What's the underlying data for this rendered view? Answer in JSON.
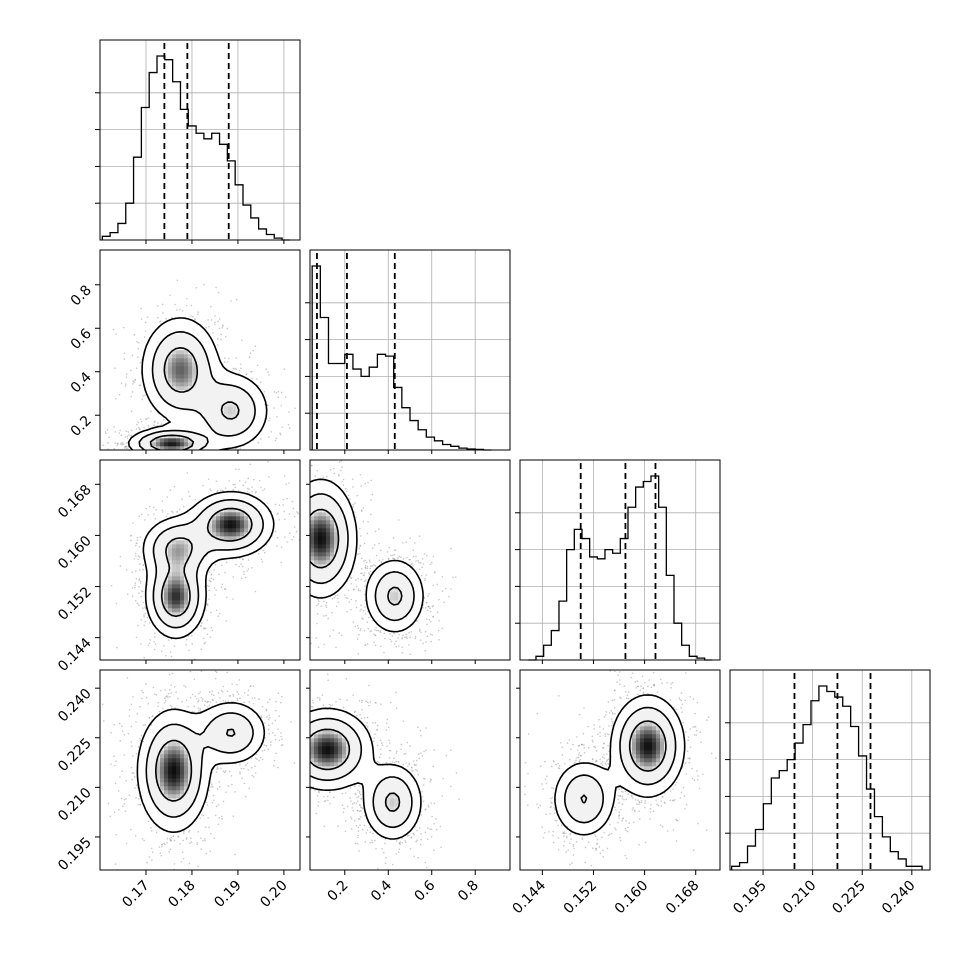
{
  "chart_data": {
    "type": "corner",
    "title": "",
    "parameters": [
      {
        "name": "param_0",
        "axis_label": "",
        "range": [
          0.16,
          0.2035
        ],
        "ticks": [
          0.17,
          0.18,
          0.19,
          0.2
        ],
        "tick_labels": [
          "0.17",
          "0.18",
          "0.19",
          "0.20"
        ],
        "quantiles": [
          0.174,
          0.179,
          0.188
        ]
      },
      {
        "name": "param_1",
        "axis_label": "",
        "range": [
          0.04,
          0.96
        ],
        "ticks": [
          0.2,
          0.4,
          0.6,
          0.8
        ],
        "tick_labels": [
          "0.2",
          "0.4",
          "0.6",
          "0.8"
        ],
        "quantiles": [
          0.072,
          0.21,
          0.43
        ]
      },
      {
        "name": "param_2",
        "axis_label": "",
        "range": [
          0.1405,
          0.1718
        ],
        "ticks": [
          0.144,
          0.152,
          0.16,
          0.168
        ],
        "tick_labels": [
          "0.144",
          "0.152",
          "0.160",
          "0.168"
        ],
        "quantiles": [
          0.15,
          0.157,
          0.1617
        ]
      },
      {
        "name": "param_3",
        "axis_label": "",
        "range": [
          0.185,
          0.2455
        ],
        "ticks": [
          0.195,
          0.21,
          0.225,
          0.24
        ],
        "tick_labels": [
          "0.195",
          "0.210",
          "0.225",
          "0.240"
        ],
        "quantiles": [
          0.2045,
          0.2175,
          0.2275
        ]
      }
    ],
    "histograms": [
      {
        "param": 0,
        "bins": [
          0.1605,
          0.1622,
          0.1639,
          0.1656,
          0.1673,
          0.169,
          0.1707,
          0.1724,
          0.1741,
          0.1758,
          0.1775,
          0.1792,
          0.1809,
          0.1826,
          0.1843,
          0.186,
          0.1877,
          0.1894,
          0.1911,
          0.1928,
          0.1945,
          0.1962,
          0.1979,
          0.1996,
          0.2013
        ],
        "counts": [
          0.02,
          0.04,
          0.09,
          0.2,
          0.45,
          0.72,
          0.91,
          1.0,
          0.98,
          0.86,
          0.71,
          0.62,
          0.58,
          0.55,
          0.58,
          0.52,
          0.43,
          0.3,
          0.19,
          0.12,
          0.06,
          0.03,
          0.01,
          0.0
        ]
      },
      {
        "param": 1,
        "bins": [
          0.05,
          0.0875,
          0.125,
          0.1625,
          0.2,
          0.2375,
          0.275,
          0.3125,
          0.35,
          0.3875,
          0.425,
          0.4625,
          0.5,
          0.5375,
          0.575,
          0.6125,
          0.65,
          0.6875,
          0.725,
          0.7625,
          0.8,
          0.8375,
          0.875
        ],
        "counts": [
          1.0,
          0.72,
          0.47,
          0.47,
          0.52,
          0.44,
          0.4,
          0.45,
          0.52,
          0.51,
          0.34,
          0.23,
          0.16,
          0.11,
          0.07,
          0.05,
          0.03,
          0.02,
          0.01,
          0.005,
          0.003,
          0.0
        ]
      },
      {
        "param": 2,
        "bins": [
          0.1418,
          0.143,
          0.1442,
          0.1454,
          0.1466,
          0.1478,
          0.149,
          0.1502,
          0.1514,
          0.1526,
          0.1538,
          0.155,
          0.1562,
          0.1574,
          0.1586,
          0.1598,
          0.161,
          0.1622,
          0.1634,
          0.1646,
          0.1658,
          0.167,
          0.1682,
          0.1694,
          0.1706
        ],
        "counts": [
          0.0,
          0.02,
          0.08,
          0.16,
          0.32,
          0.6,
          0.71,
          0.66,
          0.56,
          0.55,
          0.6,
          0.58,
          0.66,
          0.83,
          0.94,
          0.97,
          1.0,
          0.83,
          0.46,
          0.2,
          0.08,
          0.02,
          0.01,
          0.0
        ]
      },
      {
        "param": 3,
        "bins": [
          0.1855,
          0.1879,
          0.1903,
          0.1927,
          0.1951,
          0.1975,
          0.1999,
          0.2023,
          0.2047,
          0.2071,
          0.2095,
          0.2119,
          0.2143,
          0.2167,
          0.2191,
          0.2215,
          0.2239,
          0.2263,
          0.2287,
          0.2311,
          0.2335,
          0.2359,
          0.2383,
          0.2407,
          0.2431
        ],
        "counts": [
          0.02,
          0.04,
          0.13,
          0.22,
          0.36,
          0.5,
          0.54,
          0.6,
          0.69,
          0.79,
          0.92,
          1.0,
          0.97,
          0.94,
          0.89,
          0.78,
          0.62,
          0.44,
          0.29,
          0.18,
          0.1,
          0.06,
          0.02,
          0.02
        ]
      }
    ],
    "pairs": [
      {
        "x": 0,
        "y": 1,
        "modes": [
          {
            "cx": 0.1775,
            "cy": 0.41,
            "sx": 0.0042,
            "sy": 0.12,
            "w": 0.34
          },
          {
            "cx": 0.1885,
            "cy": 0.22,
            "sx": 0.0042,
            "sy": 0.09,
            "w": 0.26
          },
          {
            "cx": 0.1755,
            "cy": 0.07,
            "sx": 0.0045,
            "sy": 0.035,
            "w": 0.4
          }
        ]
      },
      {
        "x": 0,
        "y": 2,
        "modes": [
          {
            "cx": 0.1765,
            "cy": 0.1504,
            "sx": 0.0032,
            "sy": 0.0032,
            "w": 0.36
          },
          {
            "cx": 0.177,
            "cy": 0.158,
            "sx": 0.004,
            "sy": 0.0025,
            "w": 0.26
          },
          {
            "cx": 0.1885,
            "cy": 0.1617,
            "sx": 0.0045,
            "sy": 0.0025,
            "w": 0.38
          }
        ]
      },
      {
        "x": 0,
        "y": 3,
        "modes": [
          {
            "cx": 0.176,
            "cy": 0.215,
            "sx": 0.0038,
            "sy": 0.009,
            "w": 0.62
          },
          {
            "cx": 0.1885,
            "cy": 0.2265,
            "sx": 0.004,
            "sy": 0.005,
            "w": 0.38
          }
        ]
      },
      {
        "x": 1,
        "y": 2,
        "modes": [
          {
            "cx": 0.09,
            "cy": 0.1595,
            "sx": 0.08,
            "sy": 0.0045,
            "w": 0.6
          },
          {
            "cx": 0.43,
            "cy": 0.1505,
            "sx": 0.07,
            "sy": 0.003,
            "w": 0.4
          }
        ]
      },
      {
        "x": 1,
        "y": 3,
        "modes": [
          {
            "cx": 0.12,
            "cy": 0.2215,
            "sx": 0.1,
            "sy": 0.006,
            "w": 0.6
          },
          {
            "cx": 0.42,
            "cy": 0.2055,
            "sx": 0.07,
            "sy": 0.006,
            "w": 0.4
          }
        ]
      },
      {
        "x": 2,
        "y": 3,
        "modes": [
          {
            "cx": 0.1605,
            "cy": 0.2225,
            "sx": 0.0028,
            "sy": 0.0075,
            "w": 0.62
          },
          {
            "cx": 0.1505,
            "cy": 0.2065,
            "sx": 0.0025,
            "sy": 0.006,
            "w": 0.38
          }
        ]
      }
    ],
    "contour_levels": [
      0.12,
      0.3,
      0.6
    ],
    "grid": true,
    "colors": {
      "line": "#000000",
      "scatter": "#9a9a9a",
      "grid": "#b0b0b0"
    }
  }
}
